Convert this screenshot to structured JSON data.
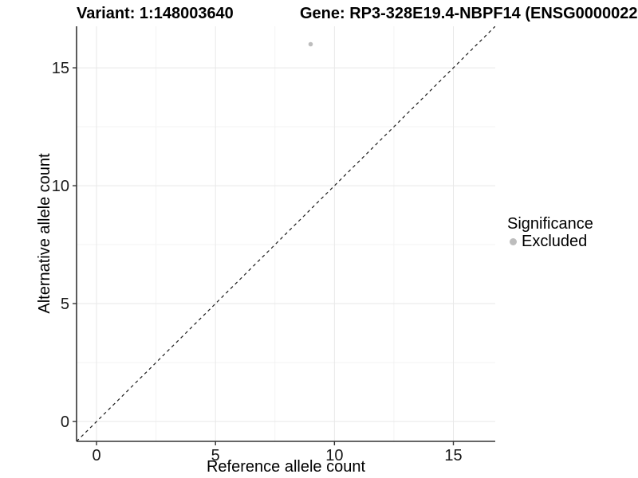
{
  "header": {
    "variant_title": "Variant: 1:148003640",
    "gene_title": "Gene: RP3-328E19.4-NBPF14 (ENSG0000022"
  },
  "legend": {
    "title": "Significance",
    "items": [
      {
        "label": "Excluded",
        "color": "#bdbdbd"
      }
    ]
  },
  "colors": {
    "background": "#ffffff",
    "grid_major": "#e8e8e8",
    "grid_minor": "#f3f3f3",
    "axis_line": "#333333",
    "tick_text": "#1a1a1a",
    "point": "#bdbdbd",
    "reference_line": "#1a1a1a"
  },
  "chart_data": {
    "type": "scatter",
    "title_left": "Variant: 1:148003640",
    "title_right": "Gene: RP3-328E19.4-NBPF14 (ENSG0000022",
    "xlabel": "Reference allele count",
    "ylabel": "Alternative allele count",
    "xlim": [
      -0.84,
      16.76
    ],
    "ylim": [
      -0.84,
      16.76
    ],
    "x_ticks": [
      0,
      5,
      10,
      15
    ],
    "y_ticks": [
      0,
      5,
      10,
      15
    ],
    "x_minor_ticks": [
      2.5,
      7.5,
      12.5
    ],
    "y_minor_ticks": [
      2.5,
      7.5,
      12.5
    ],
    "grid": "major+minor",
    "legend": {
      "title": "Significance",
      "position": "right",
      "entries": [
        {
          "label": "Excluded",
          "color": "#bdbdbd"
        }
      ]
    },
    "series": [
      {
        "name": "Excluded",
        "color": "#bdbdbd",
        "points": [
          {
            "x": 9,
            "y": 16
          }
        ]
      }
    ],
    "reference_line": {
      "slope": 1,
      "intercept": 0,
      "style": "dashed",
      "color": "#1a1a1a"
    }
  }
}
